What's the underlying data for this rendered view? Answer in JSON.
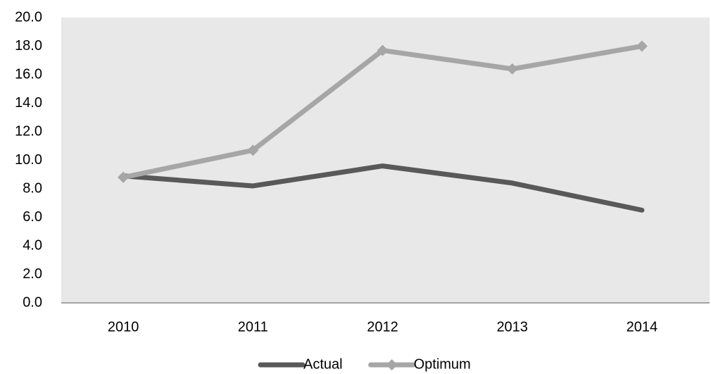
{
  "chart_data": {
    "type": "line",
    "categories": [
      "2010",
      "2011",
      "2012",
      "2013",
      "2014"
    ],
    "series": [
      {
        "name": "Actual",
        "color": "#595959",
        "marker": "none",
        "values": [
          8.9,
          8.2,
          9.6,
          8.4,
          6.5
        ]
      },
      {
        "name": "Optimum",
        "color": "#a6a6a6",
        "marker": "diamond",
        "values": [
          8.8,
          10.7,
          17.7,
          16.4,
          18.0
        ]
      }
    ],
    "ylim": [
      0,
      20
    ],
    "yticks": [
      {
        "value": 0,
        "label": "0.0"
      },
      {
        "value": 2,
        "label": "2.0"
      },
      {
        "value": 4,
        "label": "4.0"
      },
      {
        "value": 6,
        "label": "6.0"
      },
      {
        "value": 8,
        "label": "8.0"
      },
      {
        "value": 10,
        "label": "10.0"
      },
      {
        "value": 12,
        "label": "12.0"
      },
      {
        "value": 14,
        "label": "14.0"
      },
      {
        "value": 16,
        "label": "16.0"
      },
      {
        "value": 18,
        "label": "18.0"
      },
      {
        "value": 20,
        "label": "20.0"
      }
    ],
    "grid": false,
    "legend": "bottom",
    "plot_background": "#e8e8e8"
  }
}
